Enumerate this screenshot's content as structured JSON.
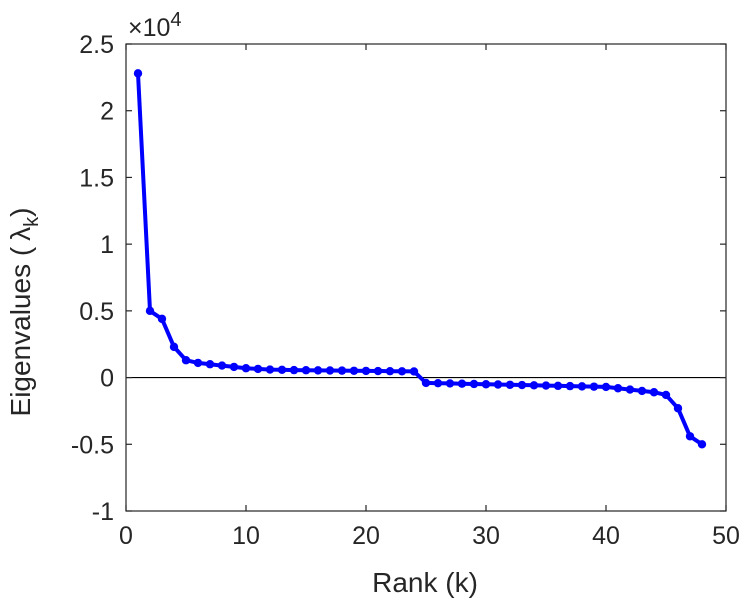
{
  "chart_data": {
    "type": "line",
    "xlabel": "Rank (k)",
    "ylabel_text": "Eigenvalues (",
    "ylabel_symbol": "λ",
    "ylabel_subscript": "k",
    "ylabel_close": ")",
    "exponent": {
      "base": "×10",
      "power": "4"
    },
    "xlim": [
      0,
      50
    ],
    "ylim": [
      -1,
      2.5
    ],
    "xticks": [
      "0",
      "10",
      "20",
      "30",
      "40",
      "50"
    ],
    "yticks": [
      "-1",
      "-0.5",
      "0",
      "0.5",
      "1",
      "1.5",
      "2",
      "2.5"
    ],
    "grid": false,
    "series_color": "#0000ff",
    "zero_line_color": "#000000",
    "x": [
      1,
      2,
      3,
      4,
      5,
      6,
      7,
      8,
      9,
      10,
      11,
      12,
      13,
      14,
      15,
      16,
      17,
      18,
      19,
      20,
      21,
      22,
      23,
      24,
      25,
      26,
      27,
      28,
      29,
      30,
      31,
      32,
      33,
      34,
      35,
      36,
      37,
      38,
      39,
      40,
      41,
      42,
      43,
      44,
      45,
      46,
      47,
      48
    ],
    "values": [
      2.28,
      0.5,
      0.44,
      0.23,
      0.13,
      0.11,
      0.1,
      0.09,
      0.08,
      0.07,
      0.065,
      0.06,
      0.058,
      0.056,
      0.055,
      0.054,
      0.053,
      0.052,
      0.051,
      0.05,
      0.049,
      0.048,
      0.047,
      0.046,
      -0.04,
      -0.042,
      -0.044,
      -0.046,
      -0.048,
      -0.05,
      -0.052,
      -0.054,
      -0.056,
      -0.058,
      -0.06,
      -0.062,
      -0.064,
      -0.066,
      -0.068,
      -0.07,
      -0.08,
      -0.09,
      -0.1,
      -0.11,
      -0.13,
      -0.23,
      -0.44,
      -0.5
    ]
  }
}
